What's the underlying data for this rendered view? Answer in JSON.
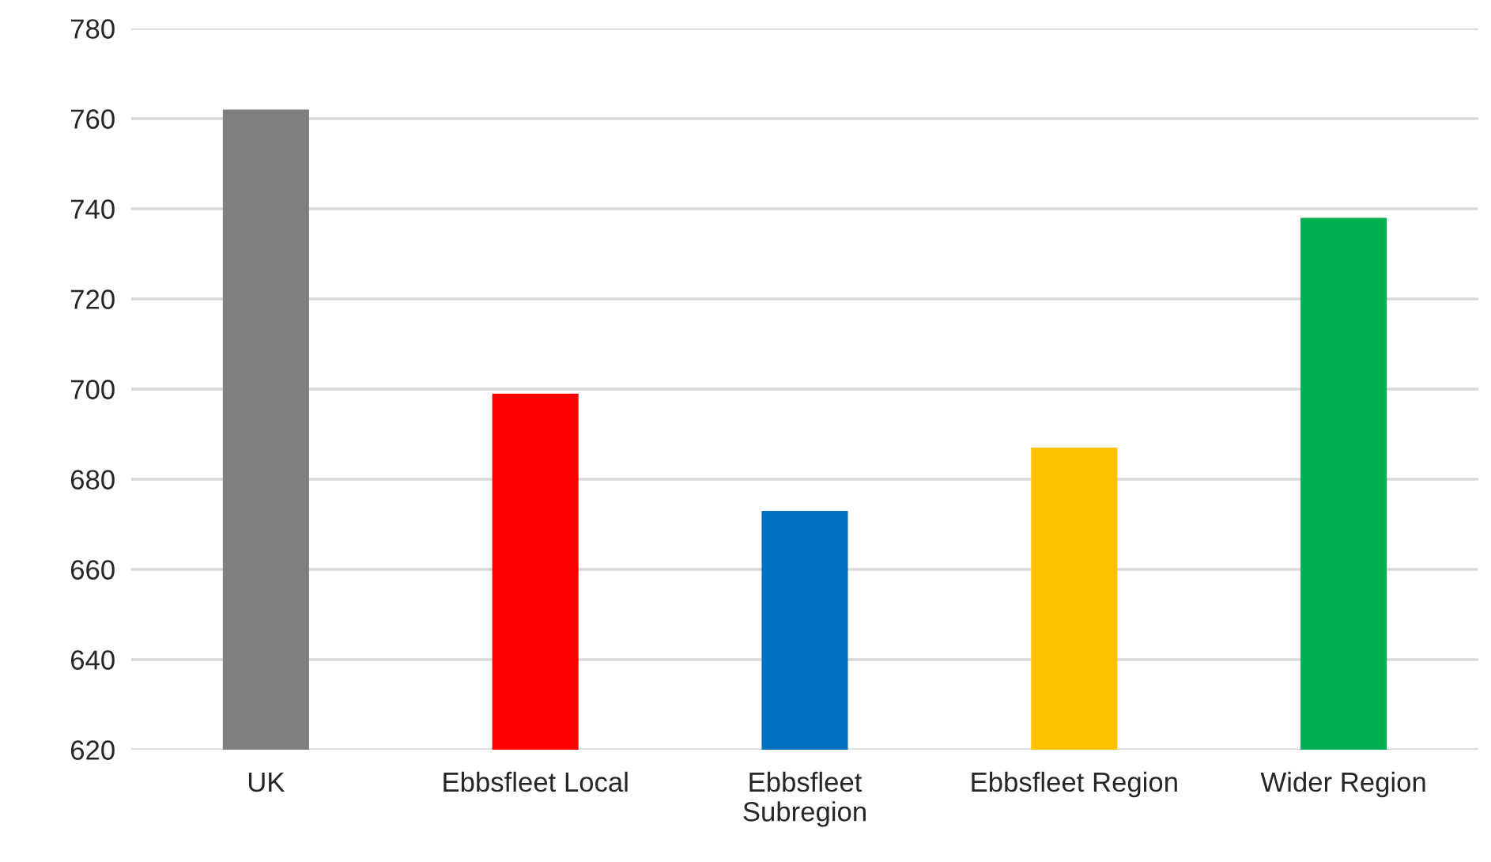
{
  "chart_data": {
    "type": "bar",
    "categories": [
      "UK",
      "Ebbsfleet Local",
      "Ebbsfleet Subregion",
      "Ebbsfleet Region",
      "Wider Region"
    ],
    "values": [
      762,
      699,
      673,
      687,
      738
    ],
    "colors": [
      "#7f7f7f",
      "#ff0000",
      "#0070c0",
      "#ffc000",
      "#00b050"
    ],
    "ylim": [
      620,
      780
    ],
    "yticks": [
      620,
      640,
      660,
      680,
      700,
      720,
      740,
      760,
      780
    ],
    "grid": "y"
  }
}
